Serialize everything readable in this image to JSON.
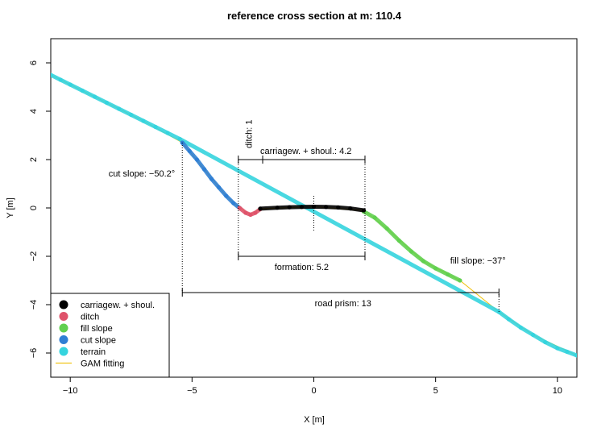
{
  "chart_data": {
    "type": "scatter",
    "title": "reference cross section at m: 110.4",
    "xlabel": "X [m]",
    "ylabel": "Y [m]",
    "xlim": [
      -10.8,
      10.8
    ],
    "ylim": [
      -7,
      7
    ],
    "x_ticks": [
      -10,
      -5,
      0,
      5,
      10
    ],
    "x_tick_labels": [
      "−10",
      "−5",
      "0",
      "5",
      "10"
    ],
    "y_ticks": [
      -6,
      -4,
      -2,
      0,
      2,
      4,
      6
    ],
    "y_tick_labels": [
      "−6",
      "−4",
      "−2",
      "0",
      "2",
      "4",
      "6"
    ],
    "grid": false,
    "legend_position": "bottom-left",
    "series": [
      {
        "name": "terrain",
        "color": "#35d4de",
        "marker": "point",
        "x": [
          -10.8,
          -10.4,
          -10.0,
          -9.5,
          -9.0,
          -8.5,
          -8.0,
          -7.5,
          -7.0,
          -6.5,
          -6.0,
          -5.5,
          7.6,
          8.0,
          8.5,
          9.0,
          9.5,
          10.0,
          10.4,
          10.8
        ],
        "y": [
          5.5,
          5.3,
          5.1,
          4.85,
          4.6,
          4.35,
          4.1,
          3.85,
          3.6,
          3.35,
          3.1,
          2.85,
          -4.3,
          -4.6,
          -4.95,
          -5.25,
          -5.55,
          -5.8,
          -5.95,
          -6.1
        ]
      },
      {
        "name": "cut slope",
        "color": "#2f7fd4",
        "marker": "point",
        "x": [
          -5.4,
          -5.1,
          -4.8,
          -4.5,
          -4.2,
          -3.9,
          -3.6,
          -3.3,
          -3.05
        ],
        "y": [
          2.7,
          2.35,
          2.0,
          1.6,
          1.2,
          0.85,
          0.5,
          0.2,
          0.0
        ]
      },
      {
        "name": "ditch",
        "color": "#df536b",
        "marker": "point",
        "x": [
          -3.05,
          -2.8,
          -2.6,
          -2.4,
          -2.2
        ],
        "y": [
          0.0,
          -0.2,
          -0.28,
          -0.2,
          -0.05
        ]
      },
      {
        "name": "carriagew. + shoul.",
        "color": "#000000",
        "marker": "point",
        "x": [
          -2.2,
          -1.5,
          -1.0,
          -0.5,
          0.0,
          0.5,
          1.0,
          1.5,
          2.05
        ],
        "y": [
          -0.03,
          0.01,
          0.03,
          0.04,
          0.05,
          0.04,
          0.02,
          -0.02,
          -0.1
        ]
      },
      {
        "name": "fill slope",
        "color": "#61d04f",
        "marker": "point",
        "x": [
          2.05,
          2.5,
          3.0,
          3.5,
          4.0,
          4.5,
          5.0,
          5.5,
          6.0
        ],
        "y": [
          -0.15,
          -0.4,
          -0.85,
          -1.35,
          -1.8,
          -2.2,
          -2.5,
          -2.75,
          -3.0
        ]
      },
      {
        "name": "GAM fitting",
        "color": "#f0c419",
        "marker": "line",
        "x": [
          -10.8,
          -9.0,
          -7.0,
          -5.4,
          -4.5,
          -3.6,
          -3.05,
          -2.6,
          -2.2,
          0.0,
          2.05,
          3.0,
          4.5,
          6.0,
          7.6,
          9.0,
          10.8
        ],
        "y": [
          5.5,
          4.6,
          3.6,
          2.7,
          1.6,
          0.5,
          0.0,
          -0.28,
          -0.03,
          0.05,
          -0.1,
          -0.85,
          -2.2,
          -3.0,
          -4.3,
          -5.25,
          -6.1
        ]
      }
    ],
    "annotations": {
      "ditch_label": "ditch: 1",
      "carriageway_label": "carriagew. + shoul.: 4.2",
      "cut_slope_label": "cut slope: −50.2°",
      "formation_label": "formation: 5.2",
      "fill_slope_label": "fill slope: −37°",
      "road_prism_label": "road prism: 13"
    },
    "dimension_lines": {
      "ditch": [
        -3.1,
        -2.1
      ],
      "carriageway": [
        -2.1,
        2.1
      ],
      "formation": [
        -3.1,
        2.1
      ],
      "road_prism": [
        -5.4,
        7.6
      ],
      "centerline": 0
    },
    "legend": [
      {
        "label": "carriagew. + shoul.",
        "color": "#000000",
        "kind": "dot"
      },
      {
        "label": "ditch",
        "color": "#df536b",
        "kind": "dot"
      },
      {
        "label": "fill slope",
        "color": "#61d04f",
        "kind": "dot"
      },
      {
        "label": "cut slope",
        "color": "#2f7fd4",
        "kind": "dot"
      },
      {
        "label": "terrain",
        "color": "#35d4de",
        "kind": "dot"
      },
      {
        "label": "GAM fitting",
        "color": "#f0c419",
        "kind": "line"
      }
    ]
  }
}
